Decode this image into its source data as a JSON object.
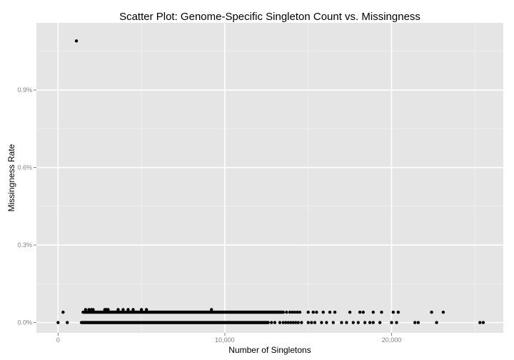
{
  "chart_data": {
    "type": "scatter",
    "title": "Scatter Plot: Genome-Specific Singleton Count vs. Missingness",
    "xlabel": "Number of Singletons",
    "ylabel": "Missingness Rate",
    "xlim": [
      -1300,
      26700
    ],
    "ylim": [
      -0.0004,
      0.0116
    ],
    "x_ticks": [
      {
        "value": 0,
        "label": "0"
      },
      {
        "value": 10000,
        "label": "10,000"
      },
      {
        "value": 20000,
        "label": "20,000"
      }
    ],
    "y_ticks": [
      {
        "value": 0,
        "label": "0.0%"
      },
      {
        "value": 0.003,
        "label": "0.3%"
      },
      {
        "value": 0.006,
        "label": "0.6%"
      },
      {
        "value": 0.009,
        "label": "0.9%"
      }
    ],
    "grid": true,
    "background": "#e5e5e5",
    "grid_major_color": "#ffffff",
    "grid_minor_color": "#f2f2f2",
    "point_color": "#000000",
    "dense_bands": [
      {
        "y": 0.0004,
        "x_from": 1500,
        "x_to": 13500
      },
      {
        "y": 0.0,
        "x_from": 1400,
        "x_to": 12600
      }
    ],
    "points": [
      [
        1100,
        0.0109
      ],
      [
        0,
        0.0
      ],
      [
        300,
        0.0004
      ],
      [
        550,
        0.0
      ],
      [
        1650,
        0.0005
      ],
      [
        1850,
        0.0005
      ],
      [
        2000,
        0.0005
      ],
      [
        2100,
        0.0005
      ],
      [
        2800,
        0.0005
      ],
      [
        2900,
        0.0005
      ],
      [
        3000,
        0.0005
      ],
      [
        3600,
        0.0005
      ],
      [
        3900,
        0.0005
      ],
      [
        4200,
        0.0005
      ],
      [
        4500,
        0.0005
      ],
      [
        5000,
        0.0005
      ],
      [
        5300,
        0.0005
      ],
      [
        9200,
        0.0005
      ],
      [
        13200,
        0.0004
      ],
      [
        13500,
        0.0004
      ],
      [
        13700,
        0.0004
      ],
      [
        13900,
        0.0004
      ],
      [
        14050,
        0.0004
      ],
      [
        14200,
        0.0004
      ],
      [
        14350,
        0.0004
      ],
      [
        14500,
        0.0004
      ],
      [
        15000,
        0.0004
      ],
      [
        15300,
        0.0004
      ],
      [
        15500,
        0.0004
      ],
      [
        15900,
        0.0004
      ],
      [
        16300,
        0.0004
      ],
      [
        16600,
        0.0004
      ],
      [
        17500,
        0.0004
      ],
      [
        18100,
        0.0004
      ],
      [
        18300,
        0.0004
      ],
      [
        18900,
        0.0004
      ],
      [
        19400,
        0.0004
      ],
      [
        20100,
        0.0004
      ],
      [
        20400,
        0.0004
      ],
      [
        22400,
        0.0004
      ],
      [
        23100,
        0.0004
      ],
      [
        12800,
        0.0
      ],
      [
        13000,
        0.0
      ],
      [
        13300,
        0.0
      ],
      [
        13500,
        0.0
      ],
      [
        13650,
        0.0
      ],
      [
        13800,
        0.0
      ],
      [
        13950,
        0.0
      ],
      [
        14100,
        0.0
      ],
      [
        14250,
        0.0
      ],
      [
        14400,
        0.0
      ],
      [
        14600,
        0.0
      ],
      [
        15000,
        0.0
      ],
      [
        15200,
        0.0
      ],
      [
        15400,
        0.0
      ],
      [
        15800,
        0.0
      ],
      [
        16100,
        0.0
      ],
      [
        16500,
        0.0
      ],
      [
        17000,
        0.0
      ],
      [
        17300,
        0.0
      ],
      [
        17700,
        0.0
      ],
      [
        18000,
        0.0
      ],
      [
        18400,
        0.0
      ],
      [
        18700,
        0.0
      ],
      [
        18900,
        0.0
      ],
      [
        19300,
        0.0
      ],
      [
        20000,
        0.0
      ],
      [
        20300,
        0.0
      ],
      [
        21400,
        0.0
      ],
      [
        21600,
        0.0
      ],
      [
        22700,
        0.0
      ],
      [
        25300,
        0.0
      ],
      [
        25500,
        0.0
      ]
    ]
  }
}
